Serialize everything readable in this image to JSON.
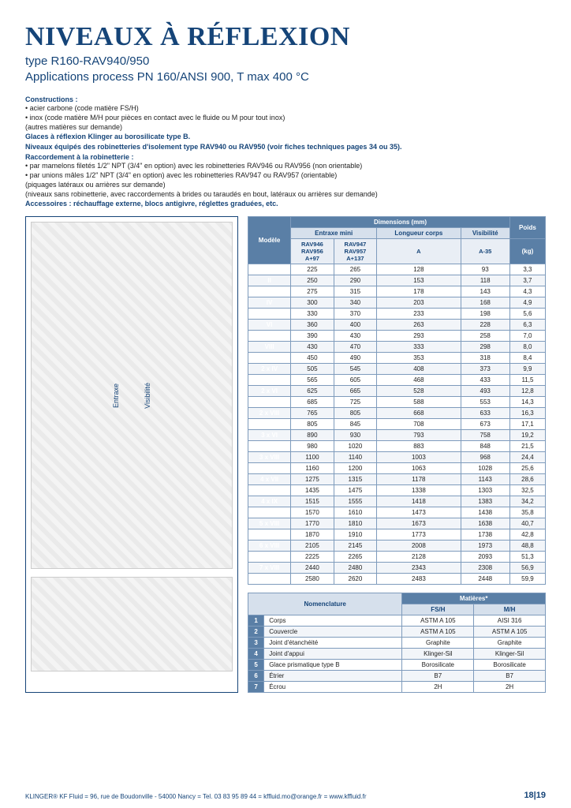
{
  "title": "NIVEAUX À RÉFLEXION",
  "subtitle1": "type R160-RAV940/950",
  "subtitle2": "Applications process PN 160/ANSI 900, T max 400 °C",
  "constructions_label": "Constructions :",
  "bullet1": "• acier carbone (code matière FS/H)",
  "bullet2": "• inox (code matière M/H pour pièces en contact avec le fluide ou M pour tout inox)",
  "note1": "(autres matières sur demande)",
  "bold1": "Glaces à réflexion Klinger au borosilicate type B.",
  "bold2": "Niveaux équipés des robinetteries d'isolement type RAV940 ou RAV950 (voir fiches techniques pages 34 ou 35).",
  "raccord_label": "Raccordement à la robinetterie :",
  "bullet3": "• par mamelons filetés 1/2\" NPT (3/4\" en option) avec les robinetteries RAV946 ou RAV956 (non orientable)",
  "bullet4": "• par unions mâles 1/2\" NPT (3/4\" en option) avec les robinetteries RAV947 ou RAV957 (orientable)",
  "note2": "(piquages latéraux ou arrières sur demande)",
  "note3": "(niveaux sans robinetterie, avec raccordements à brides ou taraudés en bout, latéraux ou arrières sur demande)",
  "bold3": "Accessoires : réchauffage externe, blocs antigivre, réglettes graduées, etc.",
  "diagram_labels": {
    "l1": "Entraxe",
    "l2": "Visibilité"
  },
  "dim_table": {
    "top_header": "Dimensions (mm)",
    "modele": "Modèle",
    "poids": "Poids",
    "kg": "(kg)",
    "entraxe": "Entraxe mini",
    "long": "Longueur corps",
    "vis": "Visibilité",
    "sub_col1": "RAV946\nRAV956\nA+97",
    "sub_col2": "RAV947\nRAV957\nA+137",
    "sub_col3": "A",
    "sub_col4": "A-35",
    "rows": [
      [
        "I",
        "225",
        "265",
        "128",
        "93",
        "3,3"
      ],
      [
        "II",
        "250",
        "290",
        "153",
        "118",
        "3,7"
      ],
      [
        "III",
        "275",
        "315",
        "178",
        "143",
        "4,3"
      ],
      [
        "IV",
        "300",
        "340",
        "203",
        "168",
        "4,9"
      ],
      [
        "V",
        "330",
        "370",
        "233",
        "198",
        "5,6"
      ],
      [
        "VI",
        "360",
        "400",
        "263",
        "228",
        "6,3"
      ],
      [
        "VII",
        "390",
        "430",
        "293",
        "258",
        "7,0"
      ],
      [
        "VIII",
        "430",
        "470",
        "333",
        "298",
        "8,0"
      ],
      [
        "IX",
        "450",
        "490",
        "353",
        "318",
        "8,4"
      ],
      [
        "2 x IV",
        "505",
        "545",
        "408",
        "373",
        "9,9"
      ],
      [
        "2 x V",
        "565",
        "605",
        "468",
        "433",
        "11,5"
      ],
      [
        "2 x VI",
        "625",
        "665",
        "528",
        "493",
        "12,8"
      ],
      [
        "2 x VII",
        "685",
        "725",
        "588",
        "553",
        "14,3"
      ],
      [
        "2 x VIII",
        "765",
        "805",
        "668",
        "633",
        "16,3"
      ],
      [
        "2 x IX",
        "805",
        "845",
        "708",
        "673",
        "17,1"
      ],
      [
        "3 x VI",
        "890",
        "930",
        "793",
        "758",
        "19,2"
      ],
      [
        "3 x VII",
        "980",
        "1020",
        "883",
        "848",
        "21,5"
      ],
      [
        "3 x VIII",
        "1100",
        "1140",
        "1003",
        "968",
        "24,4"
      ],
      [
        "3 x IX",
        "1160",
        "1200",
        "1063",
        "1028",
        "25,6"
      ],
      [
        "4 x VII",
        "1275",
        "1315",
        "1178",
        "1143",
        "28,6"
      ],
      [
        "4 x VIII",
        "1435",
        "1475",
        "1338",
        "1303",
        "32,5"
      ],
      [
        "4 x IX",
        "1515",
        "1555",
        "1418",
        "1383",
        "34,2"
      ],
      [
        "5 x VII",
        "1570",
        "1610",
        "1473",
        "1438",
        "35,8"
      ],
      [
        "5 x VIII",
        "1770",
        "1810",
        "1673",
        "1638",
        "40,7"
      ],
      [
        "5 x IX",
        "1870",
        "1910",
        "1773",
        "1738",
        "42,8"
      ],
      [
        "6 x VIII",
        "2105",
        "2145",
        "2008",
        "1973",
        "48,8"
      ],
      [
        "6 x IX",
        "2225",
        "2265",
        "2128",
        "2093",
        "51,3"
      ],
      [
        "7 x VIII",
        "2440",
        "2480",
        "2343",
        "2308",
        "56,9"
      ],
      [
        "7 x IX",
        "2580",
        "2620",
        "2483",
        "2448",
        "59,9"
      ]
    ]
  },
  "nom_table": {
    "nom": "Nomenclature",
    "mat": "Matières*",
    "fsh": "FS/H",
    "mh": "M/H",
    "rows": [
      [
        "1",
        "Corps",
        "ASTM A 105",
        "AISI 316"
      ],
      [
        "2",
        "Couvercle",
        "ASTM A 105",
        "ASTM A 105"
      ],
      [
        "3",
        "Joint d'étanchéité",
        "Graphite",
        "Graphite"
      ],
      [
        "4",
        "Joint d'appui",
        "Klinger-Sil",
        "Klinger-Sil"
      ],
      [
        "5",
        "Glace prismatique type B",
        "Borosilicate",
        "Borosilicate"
      ],
      [
        "6",
        "Étrier",
        "B7",
        "B7"
      ],
      [
        "7",
        "Écrou",
        "2H",
        "2H"
      ]
    ]
  },
  "footer_text": "KLINGER® KF Fluid = 96, rue de Boudonville - 54000 Nancy = Tel. 03 83 95 89 44 = kffluid.mo@orange.fr = www.kffluid.fr",
  "page_no": "18|19",
  "colors": {
    "brand": "#154478",
    "header_bg": "#5a7fa6",
    "colhdr_bg": "#d6e0ec",
    "sub_bg": "#e9eef5",
    "row_alt": "#f2f5f9",
    "border": "#7e9bbc"
  }
}
